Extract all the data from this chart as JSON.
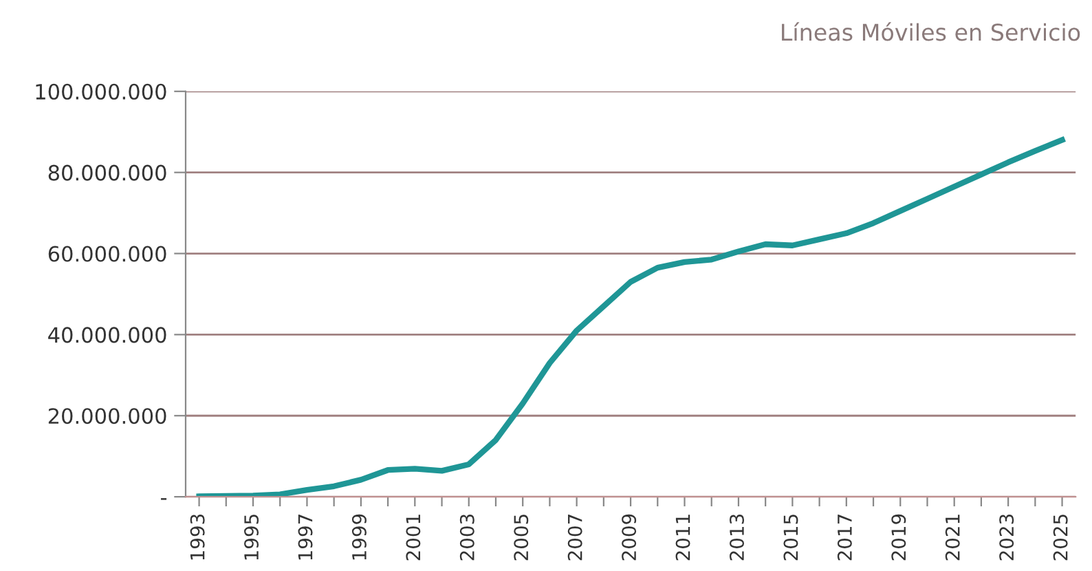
{
  "chart_data": {
    "type": "line",
    "title": "Líneas Móviles en Servicio",
    "categories": [
      "1993",
      null,
      "1995",
      null,
      "1997",
      null,
      "1999",
      null,
      "2001",
      null,
      "2003",
      null,
      "2005",
      null,
      "2007",
      null,
      "2009",
      null,
      "2011",
      null,
      "2013",
      null,
      "2015",
      null,
      "2017",
      null,
      "2019",
      null,
      "2021",
      null,
      "2023",
      null,
      "2025"
    ],
    "series": [
      {
        "color": "#1f9696",
        "values": [
          100000,
          200000,
          300000,
          600000,
          1700000,
          2600000,
          4200000,
          6600000,
          6900000,
          6400000,
          8000000,
          14000000,
          23000000,
          33000000,
          41000000,
          47000000,
          53000000,
          56500000,
          57900000,
          58500000,
          60500000,
          62300000,
          62000000,
          63500000,
          65000000,
          67500000,
          70500000,
          73500000,
          76500000,
          79500000,
          82500000,
          85300000,
          88000000
        ]
      }
    ],
    "ylim": [
      0,
      100000000
    ],
    "yticks": [
      {
        "value": 0,
        "label": "-"
      },
      {
        "value": 20000000,
        "label": "20.000.000"
      },
      {
        "value": 40000000,
        "label": "40.000.000"
      },
      {
        "value": 60000000,
        "label": "60.000.000"
      },
      {
        "value": 80000000,
        "label": "80.000.000"
      },
      {
        "value": 100000000,
        "label": "100.000.000"
      }
    ],
    "grid": "y",
    "marker": "none",
    "line_style": "solid"
  }
}
